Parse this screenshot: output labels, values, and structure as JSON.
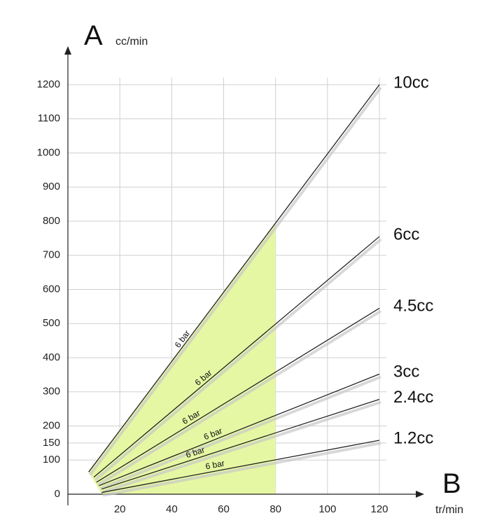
{
  "chart_data": {
    "type": "line",
    "ylabel": "A",
    "yunit": "cc/min",
    "xlabel": "B",
    "xunit": "tr/min",
    "xlim": [
      0,
      120
    ],
    "ylim": [
      0,
      1200
    ],
    "x_ticks": [
      20,
      40,
      60,
      80,
      100,
      120
    ],
    "y_ticks": [
      0,
      100,
      150,
      200,
      300,
      400,
      500,
      600,
      700,
      800,
      900,
      1000,
      1100,
      1200
    ],
    "grid": true,
    "highlight_region": {
      "x": [
        0,
        80
      ],
      "color": "#e6f7a3",
      "note": ""
    },
    "series": [
      {
        "name": "10cc",
        "line_label": "6 bar",
        "points": [
          [
            8,
            65
          ],
          [
            120,
            1200
          ]
        ]
      },
      {
        "name": "6cc",
        "line_label": "6 bar",
        "points": [
          [
            10,
            50
          ],
          [
            120,
            755
          ]
        ]
      },
      {
        "name": "4.5cc",
        "line_label": "6 bar",
        "points": [
          [
            11,
            35
          ],
          [
            120,
            545
          ]
        ]
      },
      {
        "name": "3cc",
        "line_label": "6 bar",
        "points": [
          [
            12,
            25
          ],
          [
            120,
            352
          ]
        ]
      },
      {
        "name": "2.4cc",
        "line_label": "6 bar",
        "points": [
          [
            13,
            15
          ],
          [
            120,
            278
          ]
        ]
      },
      {
        "name": "1.2cc",
        "line_label": "6 bar",
        "points": [
          [
            13,
            5
          ],
          [
            120,
            158
          ]
        ]
      }
    ]
  }
}
